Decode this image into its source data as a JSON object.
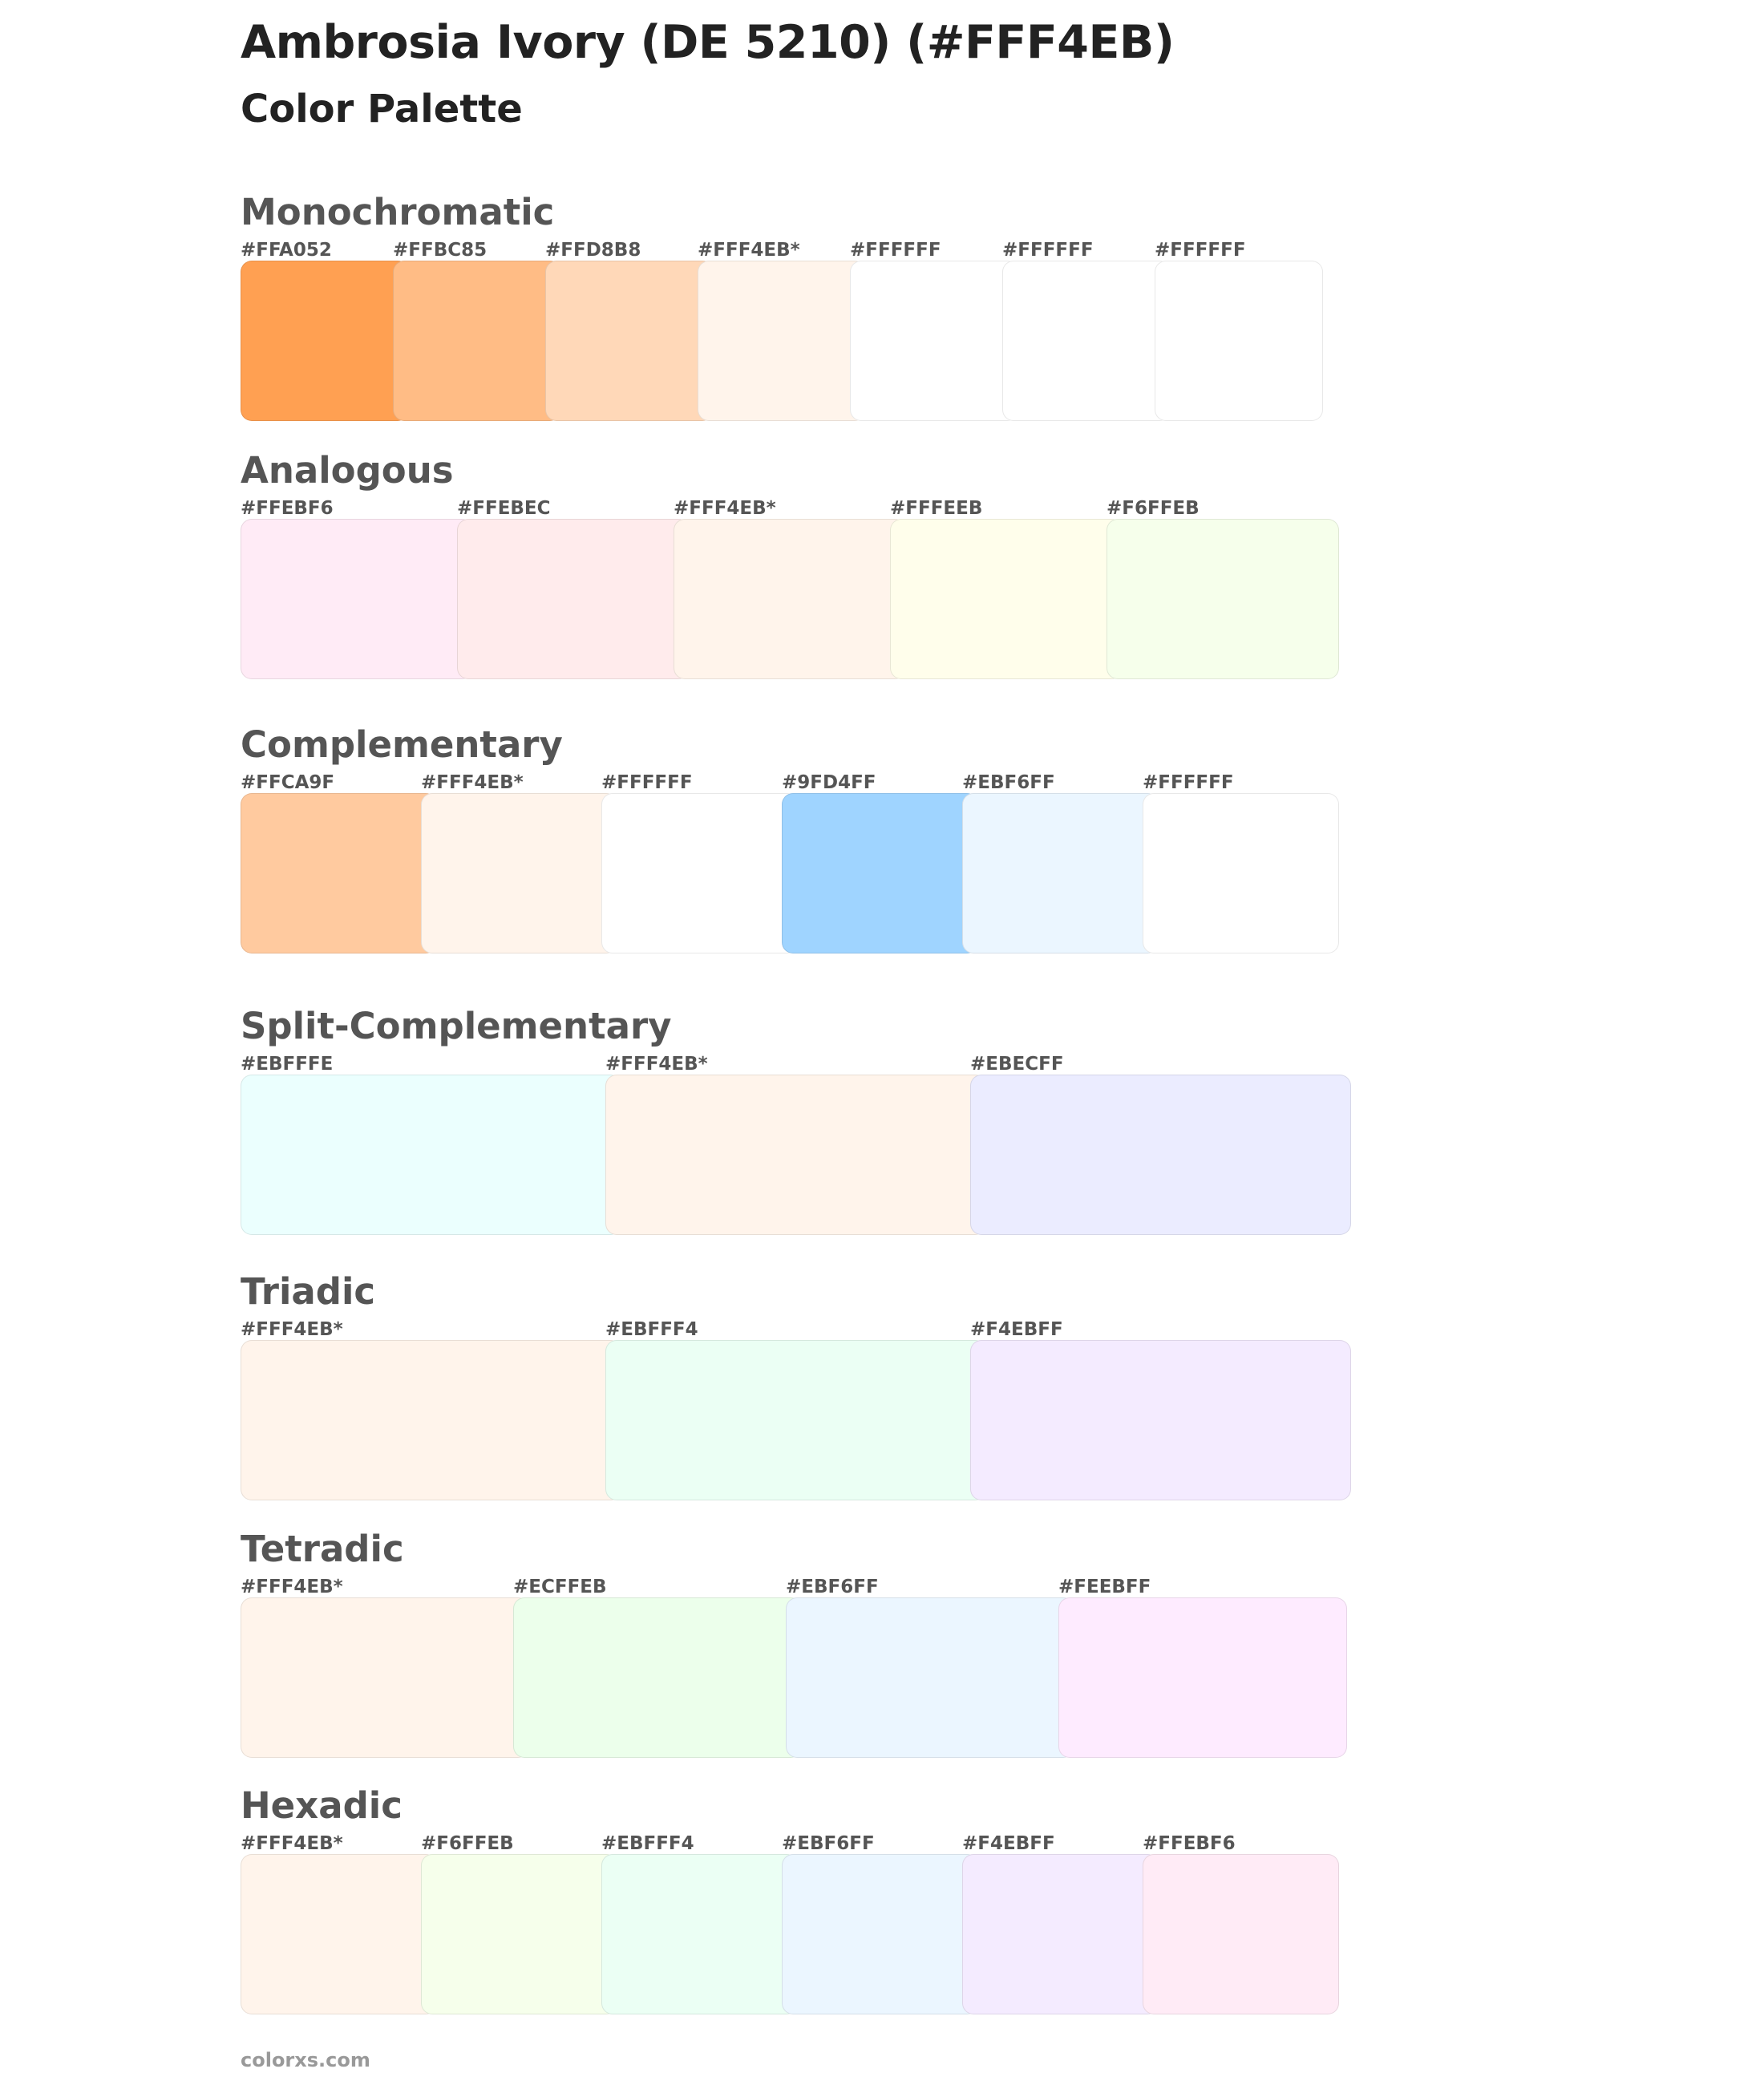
{
  "title": "Ambrosia Ivory (DE 5210) (#FFF4EB)",
  "subtitle": "Color Palette",
  "sections": [
    {
      "name": "Monochromatic",
      "colors": [
        {
          "label": "#FFA052",
          "hex": "#FFA052"
        },
        {
          "label": "#FFBC85",
          "hex": "#FFBC85"
        },
        {
          "label": "#FFD8B8",
          "hex": "#FFD8B8"
        },
        {
          "label": "#FFF4EB*",
          "hex": "#FFF4EB"
        },
        {
          "label": "#FFFFFF",
          "hex": "#FFFFFF"
        },
        {
          "label": "#FFFFFF",
          "hex": "#FFFFFF"
        },
        {
          "label": "#FFFFFF",
          "hex": "#FFFFFF"
        }
      ]
    },
    {
      "name": "Analogous",
      "colors": [
        {
          "label": "#FFEBF6",
          "hex": "#FFEBF6"
        },
        {
          "label": "#FFEBEC",
          "hex": "#FFEBEC"
        },
        {
          "label": "#FFF4EB*",
          "hex": "#FFF4EB"
        },
        {
          "label": "#FFFEEB",
          "hex": "#FFFEEB"
        },
        {
          "label": "#F6FFEB",
          "hex": "#F6FFEB"
        }
      ]
    },
    {
      "name": "Complementary",
      "colors": [
        {
          "label": "#FFCA9F",
          "hex": "#FFCA9F"
        },
        {
          "label": "#FFF4EB*",
          "hex": "#FFF4EB"
        },
        {
          "label": "#FFFFFF",
          "hex": "#FFFFFF"
        },
        {
          "label": "#9FD4FF",
          "hex": "#9FD4FF"
        },
        {
          "label": "#EBF6FF",
          "hex": "#EBF6FF"
        },
        {
          "label": "#FFFFFF",
          "hex": "#FFFFFF"
        }
      ]
    },
    {
      "name": "Split-Complementary",
      "colors": [
        {
          "label": "#EBFFFE",
          "hex": "#EBFFFE"
        },
        {
          "label": "#FFF4EB*",
          "hex": "#FFF4EB"
        },
        {
          "label": "#EBECFF",
          "hex": "#EBECFF"
        }
      ]
    },
    {
      "name": "Triadic",
      "colors": [
        {
          "label": "#FFF4EB*",
          "hex": "#FFF4EB"
        },
        {
          "label": "#EBFFF4",
          "hex": "#EBFFF4"
        },
        {
          "label": "#F4EBFF",
          "hex": "#F4EBFF"
        }
      ]
    },
    {
      "name": "Tetradic",
      "colors": [
        {
          "label": "#FFF4EB*",
          "hex": "#FFF4EB"
        },
        {
          "label": "#ECFFEB",
          "hex": "#ECFFEB"
        },
        {
          "label": "#EBF6FF",
          "hex": "#EBF6FF"
        },
        {
          "label": "#FEEBFF",
          "hex": "#FEEBFF"
        }
      ]
    },
    {
      "name": "Hexadic",
      "colors": [
        {
          "label": "#FFF4EB*",
          "hex": "#FFF4EB"
        },
        {
          "label": "#F6FFEB",
          "hex": "#F6FFEB"
        },
        {
          "label": "#EBFFF4",
          "hex": "#EBFFF4"
        },
        {
          "label": "#EBF6FF",
          "hex": "#EBF6FF"
        },
        {
          "label": "#F4EBFF",
          "hex": "#F4EBFF"
        },
        {
          "label": "#FFEBF6",
          "hex": "#FFEBF6"
        }
      ]
    }
  ],
  "footer": "colorxs.com"
}
